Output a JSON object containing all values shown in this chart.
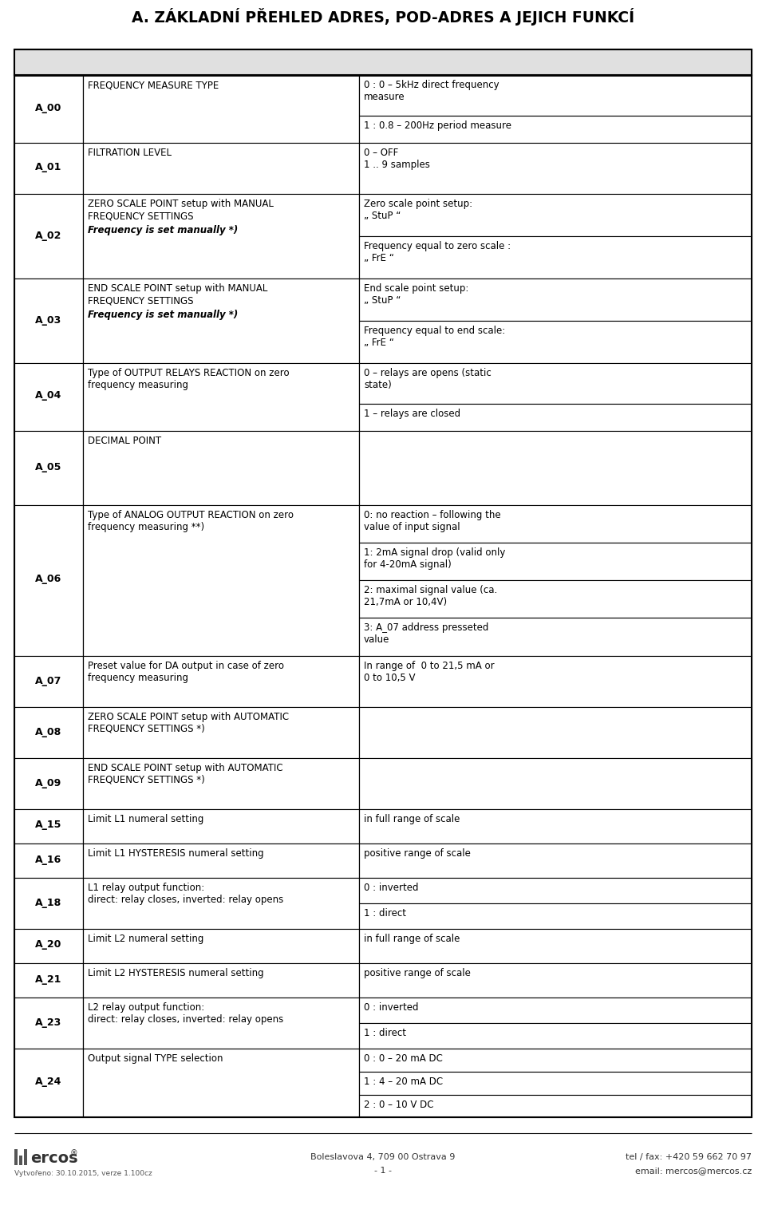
{
  "title": "A. ZÁKLADNÍ PŘEHLED ADRES, POD-ADRES A JEJICH FUNKCÍ",
  "bg_color": "#ffffff",
  "col_ratios": [
    0.094,
    0.375,
    0.531
  ],
  "header_bg": "#e8e8e8",
  "rows": [
    {
      "address": "A_00",
      "desc": [
        {
          "t": "FREQUENCY MEASURE TYPE",
          "bold": false,
          "italic": false
        }
      ],
      "opts": [
        {
          "t": "0 : 0 – 5kHz direct frequency\nmeasure"
        },
        {
          "t": "1 : 0.8 – 200Hz period measure"
        }
      ]
    },
    {
      "address": "A_01",
      "desc": [
        {
          "t": "FILTRATION LEVEL",
          "bold": false,
          "italic": false
        }
      ],
      "opts": [
        {
          "t": "0 – OFF\n1 .. 9 samples"
        }
      ]
    },
    {
      "address": "A_02",
      "desc": [
        {
          "t": "ZERO SCALE POINT setup with MANUAL\nFREQUENCY SETTINGS",
          "bold": false,
          "italic": false
        },
        {
          "t": "Frequency is set manually *)",
          "bold": true,
          "italic": true
        }
      ],
      "opts": [
        {
          "t": "Zero scale point setup:\n„ StuP “"
        },
        {
          "t": "Frequency equal to zero scale :\n„ FrE “"
        }
      ]
    },
    {
      "address": "A_03",
      "desc": [
        {
          "t": "END SCALE POINT setup with MANUAL\nFREQUENCY SETTINGS",
          "bold": false,
          "italic": false
        },
        {
          "t": "Frequency is set manually *)",
          "bold": true,
          "italic": true
        }
      ],
      "opts": [
        {
          "t": "End scale point setup:\n„ StuP “"
        },
        {
          "t": "Frequency equal to end scale:\n„ FrE “"
        }
      ]
    },
    {
      "address": "A_04",
      "desc": [
        {
          "t": "Type of OUTPUT RELAYS REACTION on zero\nfrequency measuring",
          "bold": false,
          "italic": false,
          "bold_words": [
            "OUTPUT",
            "RELAYS",
            "REACTION"
          ]
        }
      ],
      "opts": [
        {
          "t": "0 – relays are opens (static\nstate)"
        },
        {
          "t": "1 – relays are closed"
        }
      ]
    },
    {
      "address": "A_05",
      "desc": [
        {
          "t": "DECIMAL POINT",
          "bold": false,
          "italic": false
        }
      ],
      "opts": [],
      "spacer_before": true,
      "spacer_after": true
    },
    {
      "address": "A_06",
      "desc": [
        {
          "t": "Type of ANALOG OUTPUT REACTION on zero\nfrequency measuring **)",
          "bold": false,
          "italic": false,
          "bold_words": [
            "ANALOG",
            "OUTPUT",
            "REACTION"
          ]
        }
      ],
      "opts": [
        {
          "t": "0: no reaction – following the\nvalue of input signal"
        },
        {
          "t": "1: 2mA signal drop (valid only\nfor 4-20mA signal)"
        },
        {
          "t": "2: maximal signal value (ca.\n21,7mA or 10,4V)"
        },
        {
          "t": "3: A_07 address presseted\nvalue"
        }
      ]
    },
    {
      "address": "A_07",
      "desc": [
        {
          "t": "Preset value for DA output in case of zero\nfrequency measuring",
          "bold": false,
          "italic": false
        }
      ],
      "opts": [
        {
          "t": "In range of  0 to 21,5 mA or\n0 to 10,5 V"
        }
      ]
    },
    {
      "address": "A_08",
      "desc": [
        {
          "t": "ZERO SCALE POINT setup with AUTOMATIC\nFREQUENCY SETTINGS *)",
          "bold": false,
          "italic": false
        }
      ],
      "opts": []
    },
    {
      "address": "A_09",
      "desc": [
        {
          "t": "END SCALE POINT setup with AUTOMATIC\nFREQUENCY SETTINGS *)",
          "bold": false,
          "italic": false
        }
      ],
      "opts": []
    },
    {
      "address": "A_15",
      "desc": [
        {
          "t": "Limit L1 numeral setting",
          "bold": false,
          "italic": false,
          "bold_words": [
            "L1",
            "numeral"
          ]
        }
      ],
      "opts": [
        {
          "t": "in full range of scale"
        }
      ]
    },
    {
      "address": "A_16",
      "desc": [
        {
          "t": "Limit L1 HYSTERESIS numeral setting",
          "bold": false,
          "italic": false,
          "bold_words": [
            "L1",
            "HYSTERESIS",
            "numeral"
          ]
        }
      ],
      "opts": [
        {
          "t": "positive range of scale"
        }
      ]
    },
    {
      "address": "A_18",
      "desc": [
        {
          "t": "L1 relay output function:\ndirect: relay closes, inverted: relay opens",
          "bold": false,
          "italic": false
        }
      ],
      "opts": [
        {
          "t": "0 : inverted"
        },
        {
          "t": "1 : direct"
        }
      ]
    },
    {
      "address": "A_20",
      "desc": [
        {
          "t": "Limit L2 numeral setting",
          "bold": false,
          "italic": false,
          "bold_words": [
            "L2",
            "numeral"
          ]
        }
      ],
      "opts": [
        {
          "t": "in full range of scale"
        }
      ]
    },
    {
      "address": "A_21",
      "desc": [
        {
          "t": "Limit L2 HYSTERESIS numeral setting",
          "bold": false,
          "italic": false,
          "bold_words": [
            "L2",
            "HYSTERESIS",
            "numeral"
          ]
        }
      ],
      "opts": [
        {
          "t": "positive range of scale"
        }
      ]
    },
    {
      "address": "A_23",
      "desc": [
        {
          "t": "L2 relay output function:\ndirect: relay closes, inverted: relay opens",
          "bold": false,
          "italic": false
        }
      ],
      "opts": [
        {
          "t": "0 : inverted"
        },
        {
          "t": "1 : direct"
        }
      ]
    },
    {
      "address": "A_24",
      "desc": [
        {
          "t": "Output signal TYPE selection",
          "bold": false,
          "italic": false,
          "bold_words": [
            "TYPE"
          ]
        }
      ],
      "opts": [
        {
          "t": "0 : 0 – 20 mA DC"
        },
        {
          "t": "1 : 4 – 20 mA DC"
        },
        {
          "t": "2 : 0 – 10 V DC"
        }
      ]
    }
  ],
  "footer_date": "Vytvořeno: 30.10.2015, verze 1.100cz",
  "footer_addr": "Boleslavova 4, 709 00 Ostrava 9",
  "footer_page": "- 1 -",
  "footer_tel": "tel / fax: +420 59 662 70 97",
  "footer_email": "email: mercos@mercos.cz"
}
